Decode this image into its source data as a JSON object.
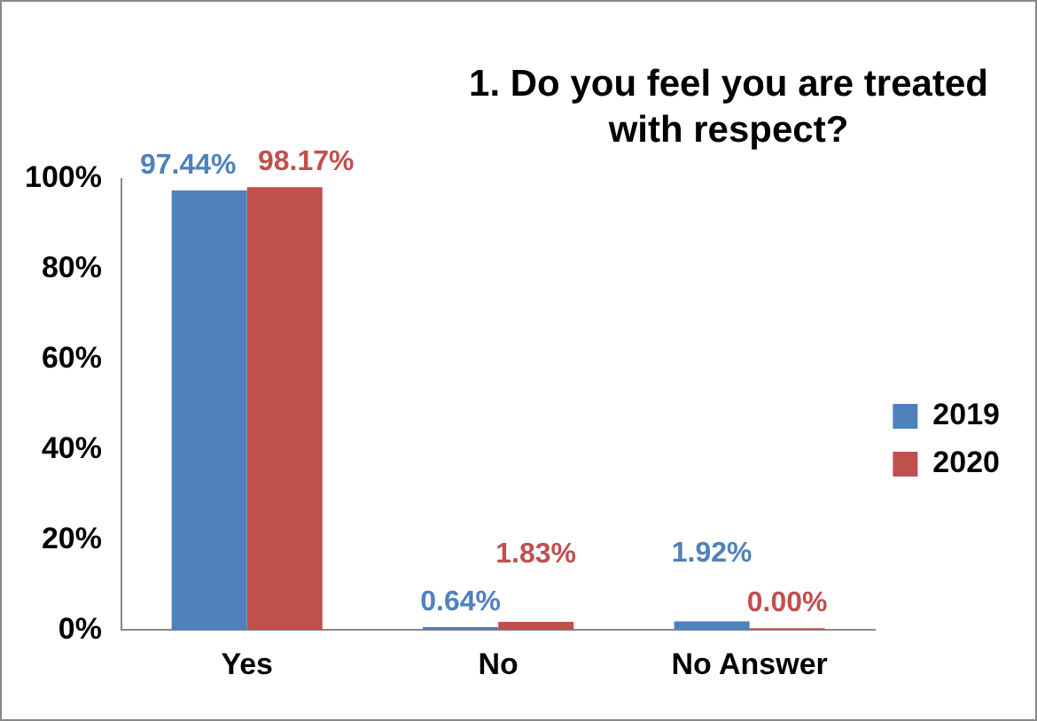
{
  "chart_data": {
    "type": "bar",
    "title": "1. Do you feel you are treated with respect?",
    "categories": [
      "Yes",
      "No",
      "No Answer"
    ],
    "series": [
      {
        "name": "2019",
        "color": "#4f81bd",
        "values": [
          97.44,
          0.64,
          1.92
        ],
        "value_labels": [
          "97.44%",
          "0.64%",
          "1.92%"
        ]
      },
      {
        "name": "2020",
        "color": "#c0504d",
        "values": [
          98.17,
          1.83,
          0.0
        ],
        "value_labels": [
          "98.17%",
          "1.83%",
          "0.00%"
        ]
      }
    ],
    "ylim": [
      0,
      100
    ],
    "yticks": [
      {
        "value": 0,
        "label": "0%"
      },
      {
        "value": 20,
        "label": "20%"
      },
      {
        "value": 40,
        "label": "40%"
      },
      {
        "value": 60,
        "label": "60%"
      },
      {
        "value": 80,
        "label": "80%"
      },
      {
        "value": 100,
        "label": "100%"
      }
    ],
    "grid": false,
    "legend": "right"
  }
}
